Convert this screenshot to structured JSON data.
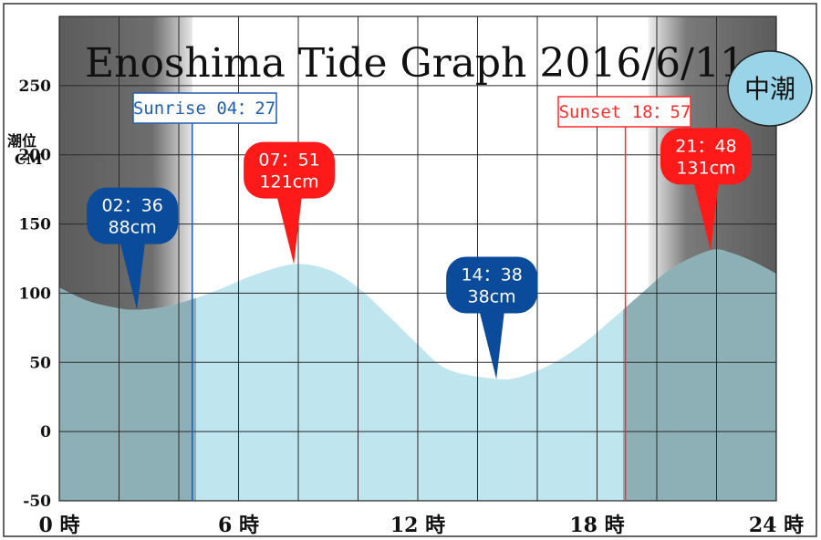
{
  "chart_data": {
    "type": "area",
    "title": "Enoshima Tide Graph 2016/6/11",
    "ylabel_line1": "潮位",
    "ylabel_line2": "CM",
    "x_ticks": [
      {
        "x": 0,
        "label": "0 時"
      },
      {
        "x": 6,
        "label": "6 時"
      },
      {
        "x": 12,
        "label": "12 時"
      },
      {
        "x": 18,
        "label": "18 時"
      },
      {
        "x": 24,
        "label": "24 時"
      }
    ],
    "y_ticks": [
      -50,
      0,
      50,
      100,
      150,
      200,
      250
    ],
    "xlim": [
      0,
      24
    ],
    "ylim": [
      -50,
      300
    ],
    "grid": true,
    "tide_series": {
      "x": [
        0,
        1,
        2,
        2.6,
        3.5,
        4.5,
        5.5,
        6.5,
        7.85,
        9,
        10,
        11,
        12,
        13,
        14.63,
        15.5,
        16.5,
        17.5,
        18.5,
        19.5,
        20.5,
        21.8,
        22.5,
        23.3,
        24
      ],
      "y": [
        104,
        94,
        89,
        88,
        90,
        96,
        104,
        113,
        121,
        117,
        104,
        84,
        63,
        45,
        38,
        40,
        49,
        63,
        81,
        100,
        118,
        131,
        129,
        122,
        114
      ]
    },
    "night_periods": [
      {
        "start": 0,
        "end": 4.45
      },
      {
        "start": 18.95,
        "end": 24
      }
    ],
    "sunrise": {
      "x": 4.45,
      "label": "Sunrise  04：27"
    },
    "sunset": {
      "x": 18.95,
      "label": "Sunset  18：57"
    },
    "extremes": [
      {
        "kind": "low",
        "x": 2.6,
        "y": 88,
        "time": "02：36",
        "height": "88cm"
      },
      {
        "kind": "high",
        "x": 7.85,
        "y": 121,
        "time": "07：51",
        "height": "121cm"
      },
      {
        "kind": "low",
        "x": 14.63,
        "y": 38,
        "time": "14：38",
        "height": "38cm"
      },
      {
        "kind": "high",
        "x": 21.8,
        "y": 131,
        "time": "21：48",
        "height": "131cm"
      }
    ],
    "tide_type_badge": "中潮"
  },
  "colors": {
    "sea": "#bfe5ee",
    "sea_under_night": "#8db0b7",
    "night": "#6b6b6b",
    "high_marker": "#ff1a1a",
    "low_marker": "#0a4b9c",
    "sunrise": "#1f5fb0",
    "sunset": "#ff2a2a",
    "badge": "#9ad4e8"
  }
}
